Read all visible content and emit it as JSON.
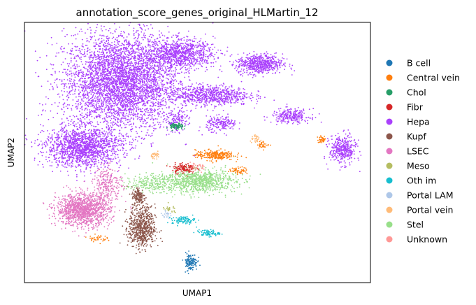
{
  "chart_data": {
    "type": "scatter",
    "title": "annotation_score_genes_original_HLMartin_12",
    "xlabel": "UMAP1",
    "ylabel": "UMAP2",
    "grid": false,
    "ticks": false,
    "legend_position": "right",
    "categories": [
      {
        "name": "B cell",
        "color": "#1f77b4"
      },
      {
        "name": "Central vein",
        "color": "#ff7f0e"
      },
      {
        "name": "Chol",
        "color": "#279e68"
      },
      {
        "name": "Fibr",
        "color": "#d62728"
      },
      {
        "name": "Hepa",
        "color": "#aa40fc"
      },
      {
        "name": "Kupf",
        "color": "#8c564b"
      },
      {
        "name": "LSEC",
        "color": "#e377c2"
      },
      {
        "name": "Meso",
        "color": "#b5bd61"
      },
      {
        "name": "Oth im",
        "color": "#17becf"
      },
      {
        "name": "Portal LAM",
        "color": "#aec7e8"
      },
      {
        "name": "Portal vein",
        "color": "#ffbb78"
      },
      {
        "name": "Stel",
        "color": "#98df8a"
      },
      {
        "name": "Unknown",
        "color": "#ff9896"
      }
    ],
    "xlim": [
      0,
      100
    ],
    "ylim": [
      0,
      100
    ],
    "clusters": [
      {
        "category": "Hepa",
        "cx": 28,
        "cy": 77,
        "sx": 15,
        "sy": 17,
        "n": 4200
      },
      {
        "category": "Hepa",
        "cx": 17,
        "cy": 52,
        "sx": 10,
        "sy": 7,
        "n": 1500
      },
      {
        "category": "Hepa",
        "cx": 45,
        "cy": 88,
        "sx": 9,
        "sy": 5,
        "n": 900
      },
      {
        "category": "Hepa",
        "cx": 68,
        "cy": 84,
        "sx": 6,
        "sy": 3.5,
        "n": 600
      },
      {
        "category": "Hepa",
        "cx": 54,
        "cy": 72,
        "sx": 10,
        "sy": 3.5,
        "n": 700
      },
      {
        "category": "Hepa",
        "cx": 57,
        "cy": 61,
        "sx": 4,
        "sy": 2.5,
        "n": 180
      },
      {
        "category": "Hepa",
        "cx": 77,
        "cy": 64,
        "sx": 5,
        "sy": 2.5,
        "n": 260
      },
      {
        "category": "Hepa",
        "cx": 92,
        "cy": 51,
        "sx": 3.5,
        "sy": 5,
        "n": 380
      },
      {
        "category": "Hepa",
        "cx": 44,
        "cy": 62,
        "sx": 2.5,
        "sy": 3.5,
        "n": 120
      },
      {
        "category": "LSEC",
        "cx": 17,
        "cy": 28,
        "sx": 7,
        "sy": 5.5,
        "n": 1300
      },
      {
        "category": "LSEC",
        "cx": 24,
        "cy": 38,
        "sx": 4,
        "sy": 6,
        "n": 250
      },
      {
        "category": "Stel",
        "cx": 50,
        "cy": 39,
        "sx": 10,
        "sy": 4,
        "n": 900
      },
      {
        "category": "Stel",
        "cx": 36,
        "cy": 38,
        "sx": 6,
        "sy": 3,
        "n": 200
      },
      {
        "category": "Kupf",
        "cx": 34,
        "cy": 21,
        "sx": 3.5,
        "sy": 7,
        "n": 650
      },
      {
        "category": "Kupf",
        "cx": 33,
        "cy": 33,
        "sx": 1.8,
        "sy": 3.5,
        "n": 150
      },
      {
        "category": "B cell",
        "cx": 48,
        "cy": 8,
        "sx": 1.8,
        "sy": 3,
        "n": 130
      },
      {
        "category": "Oth im",
        "cx": 46,
        "cy": 24,
        "sx": 3,
        "sy": 1.3,
        "n": 90
      },
      {
        "category": "Oth im",
        "cx": 53,
        "cy": 19,
        "sx": 3,
        "sy": 1.2,
        "n": 80
      },
      {
        "category": "Central vein",
        "cx": 55,
        "cy": 49,
        "sx": 5,
        "sy": 1.8,
        "n": 260
      },
      {
        "category": "Central vein",
        "cx": 62,
        "cy": 43,
        "sx": 2.5,
        "sy": 1.2,
        "n": 60
      },
      {
        "category": "Central vein",
        "cx": 69,
        "cy": 53,
        "sx": 1.5,
        "sy": 1.2,
        "n": 35
      },
      {
        "category": "Central vein",
        "cx": 86,
        "cy": 55,
        "sx": 1.2,
        "sy": 1.2,
        "n": 40
      },
      {
        "category": "Central vein",
        "cx": 21,
        "cy": 17,
        "sx": 2.5,
        "sy": 1.2,
        "n": 40
      },
      {
        "category": "Fibr",
        "cx": 46,
        "cy": 44,
        "sx": 3,
        "sy": 1.8,
        "n": 130
      },
      {
        "category": "Chol",
        "cx": 44,
        "cy": 60,
        "sx": 1.8,
        "sy": 1.2,
        "n": 90
      },
      {
        "category": "Portal vein",
        "cx": 38,
        "cy": 49,
        "sx": 1.2,
        "sy": 1,
        "n": 35
      },
      {
        "category": "Portal vein",
        "cx": 67,
        "cy": 55,
        "sx": 1.5,
        "sy": 1.2,
        "n": 30
      },
      {
        "category": "Meso",
        "cx": 42,
        "cy": 28,
        "sx": 2,
        "sy": 1.5,
        "n": 25
      },
      {
        "category": "Portal LAM",
        "cx": 41,
        "cy": 26,
        "sx": 1.5,
        "sy": 1.2,
        "n": 20
      },
      {
        "category": "Unknown",
        "cx": 50,
        "cy": 44,
        "sx": 3,
        "sy": 2,
        "n": 30
      }
    ]
  }
}
